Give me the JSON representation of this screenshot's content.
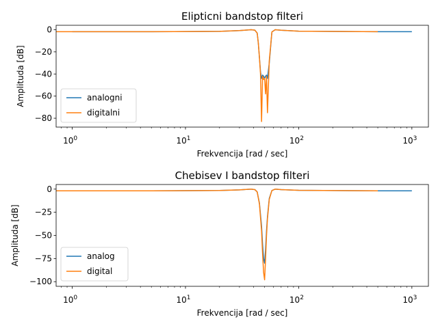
{
  "colors": {
    "analog": "#1f77b4",
    "digital": "#ff7f0e"
  },
  "chart_data": [
    {
      "type": "line",
      "title": "Elipticni bandstop filteri",
      "xlabel": "Frekvencija [rad / sec]",
      "ylabel": "Amplituda [dB]",
      "xscale": "log",
      "xlim": [
        0.72,
        1400
      ],
      "ylim": [
        -88,
        4
      ],
      "xticks": [
        {
          "value": 1,
          "base": "10",
          "exp": "0"
        },
        {
          "value": 10,
          "base": "10",
          "exp": "1"
        },
        {
          "value": 100,
          "base": "10",
          "exp": "2"
        },
        {
          "value": 1000,
          "base": "10",
          "exp": "3"
        }
      ],
      "yticks": [
        {
          "value": 0,
          "label": "0"
        },
        {
          "value": -20,
          "label": "−20"
        },
        {
          "value": -40,
          "label": "−40"
        },
        {
          "value": -60,
          "label": "−60"
        },
        {
          "value": -80,
          "label": "−80"
        }
      ],
      "legend_position": "lower-left",
      "series": [
        {
          "name": "analogni",
          "color": "#1f77b4",
          "x": [
            1,
            5,
            20,
            30,
            38,
            41,
            43,
            44,
            45,
            46,
            47,
            48,
            49,
            50,
            51,
            52,
            53,
            55,
            58,
            62,
            70,
            100,
            500,
            1000
          ],
          "y": [
            -1.8,
            -1.8,
            -1.5,
            -0.8,
            0,
            -0.4,
            -3,
            -12,
            -25,
            -38,
            -44,
            -41,
            -42,
            -44,
            -42,
            -41,
            -44,
            -30,
            -2,
            0,
            -0.5,
            -1.3,
            -1.8,
            -1.8
          ]
        },
        {
          "name": "digitalni",
          "color": "#ff7f0e",
          "x": [
            0.72,
            5,
            20,
            30,
            38,
            41,
            43,
            44,
            45,
            46,
            47,
            48,
            49,
            50,
            51,
            52,
            53,
            55,
            58,
            62,
            70,
            100,
            500
          ],
          "y": [
            -1.8,
            -1.8,
            -1.5,
            -0.8,
            0,
            -0.4,
            -3,
            -12,
            -25,
            -40,
            -83,
            -42,
            -45,
            -44,
            -58,
            -42,
            -75,
            -28,
            -2,
            0,
            -0.5,
            -1.3,
            -1.8
          ]
        }
      ]
    },
    {
      "type": "line",
      "title": "Chebisev I bandstop filteri",
      "xlabel": "Frekvencija [rad / sec]",
      "ylabel": "Amplituda [dB]",
      "xscale": "log",
      "xlim": [
        0.72,
        1400
      ],
      "ylim": [
        -105,
        5
      ],
      "xticks": [
        {
          "value": 1,
          "base": "10",
          "exp": "0"
        },
        {
          "value": 10,
          "base": "10",
          "exp": "1"
        },
        {
          "value": 100,
          "base": "10",
          "exp": "2"
        },
        {
          "value": 1000,
          "base": "10",
          "exp": "3"
        }
      ],
      "yticks": [
        {
          "value": 0,
          "label": "0"
        },
        {
          "value": -25,
          "label": "−25"
        },
        {
          "value": -50,
          "label": "−50"
        },
        {
          "value": -75,
          "label": "−75"
        },
        {
          "value": -100,
          "label": "−100"
        }
      ],
      "legend_position": "lower-left",
      "series": [
        {
          "name": "analog",
          "color": "#1f77b4",
          "x": [
            1,
            5,
            20,
            30,
            38,
            41,
            43,
            45,
            47,
            48,
            49,
            50,
            51,
            52,
            53,
            55,
            58,
            62,
            70,
            100,
            500,
            1000
          ],
          "y": [
            -1.8,
            -1.8,
            -1.5,
            -0.8,
            0,
            -0.5,
            -3,
            -15,
            -40,
            -60,
            -75,
            -80,
            -65,
            -45,
            -30,
            -10,
            -1.5,
            0,
            -0.5,
            -1.3,
            -1.8,
            -1.8
          ]
        },
        {
          "name": "digital",
          "color": "#ff7f0e",
          "x": [
            0.72,
            5,
            20,
            30,
            38,
            41,
            43,
            45,
            47,
            48,
            49,
            50,
            51,
            52,
            53,
            55,
            58,
            62,
            70,
            100,
            500
          ],
          "y": [
            -1.8,
            -1.8,
            -1.5,
            -0.8,
            0,
            -0.5,
            -3,
            -16,
            -45,
            -70,
            -90,
            -98,
            -75,
            -50,
            -32,
            -11,
            -1.5,
            0,
            -0.5,
            -1.3,
            -1.8
          ]
        }
      ]
    }
  ]
}
